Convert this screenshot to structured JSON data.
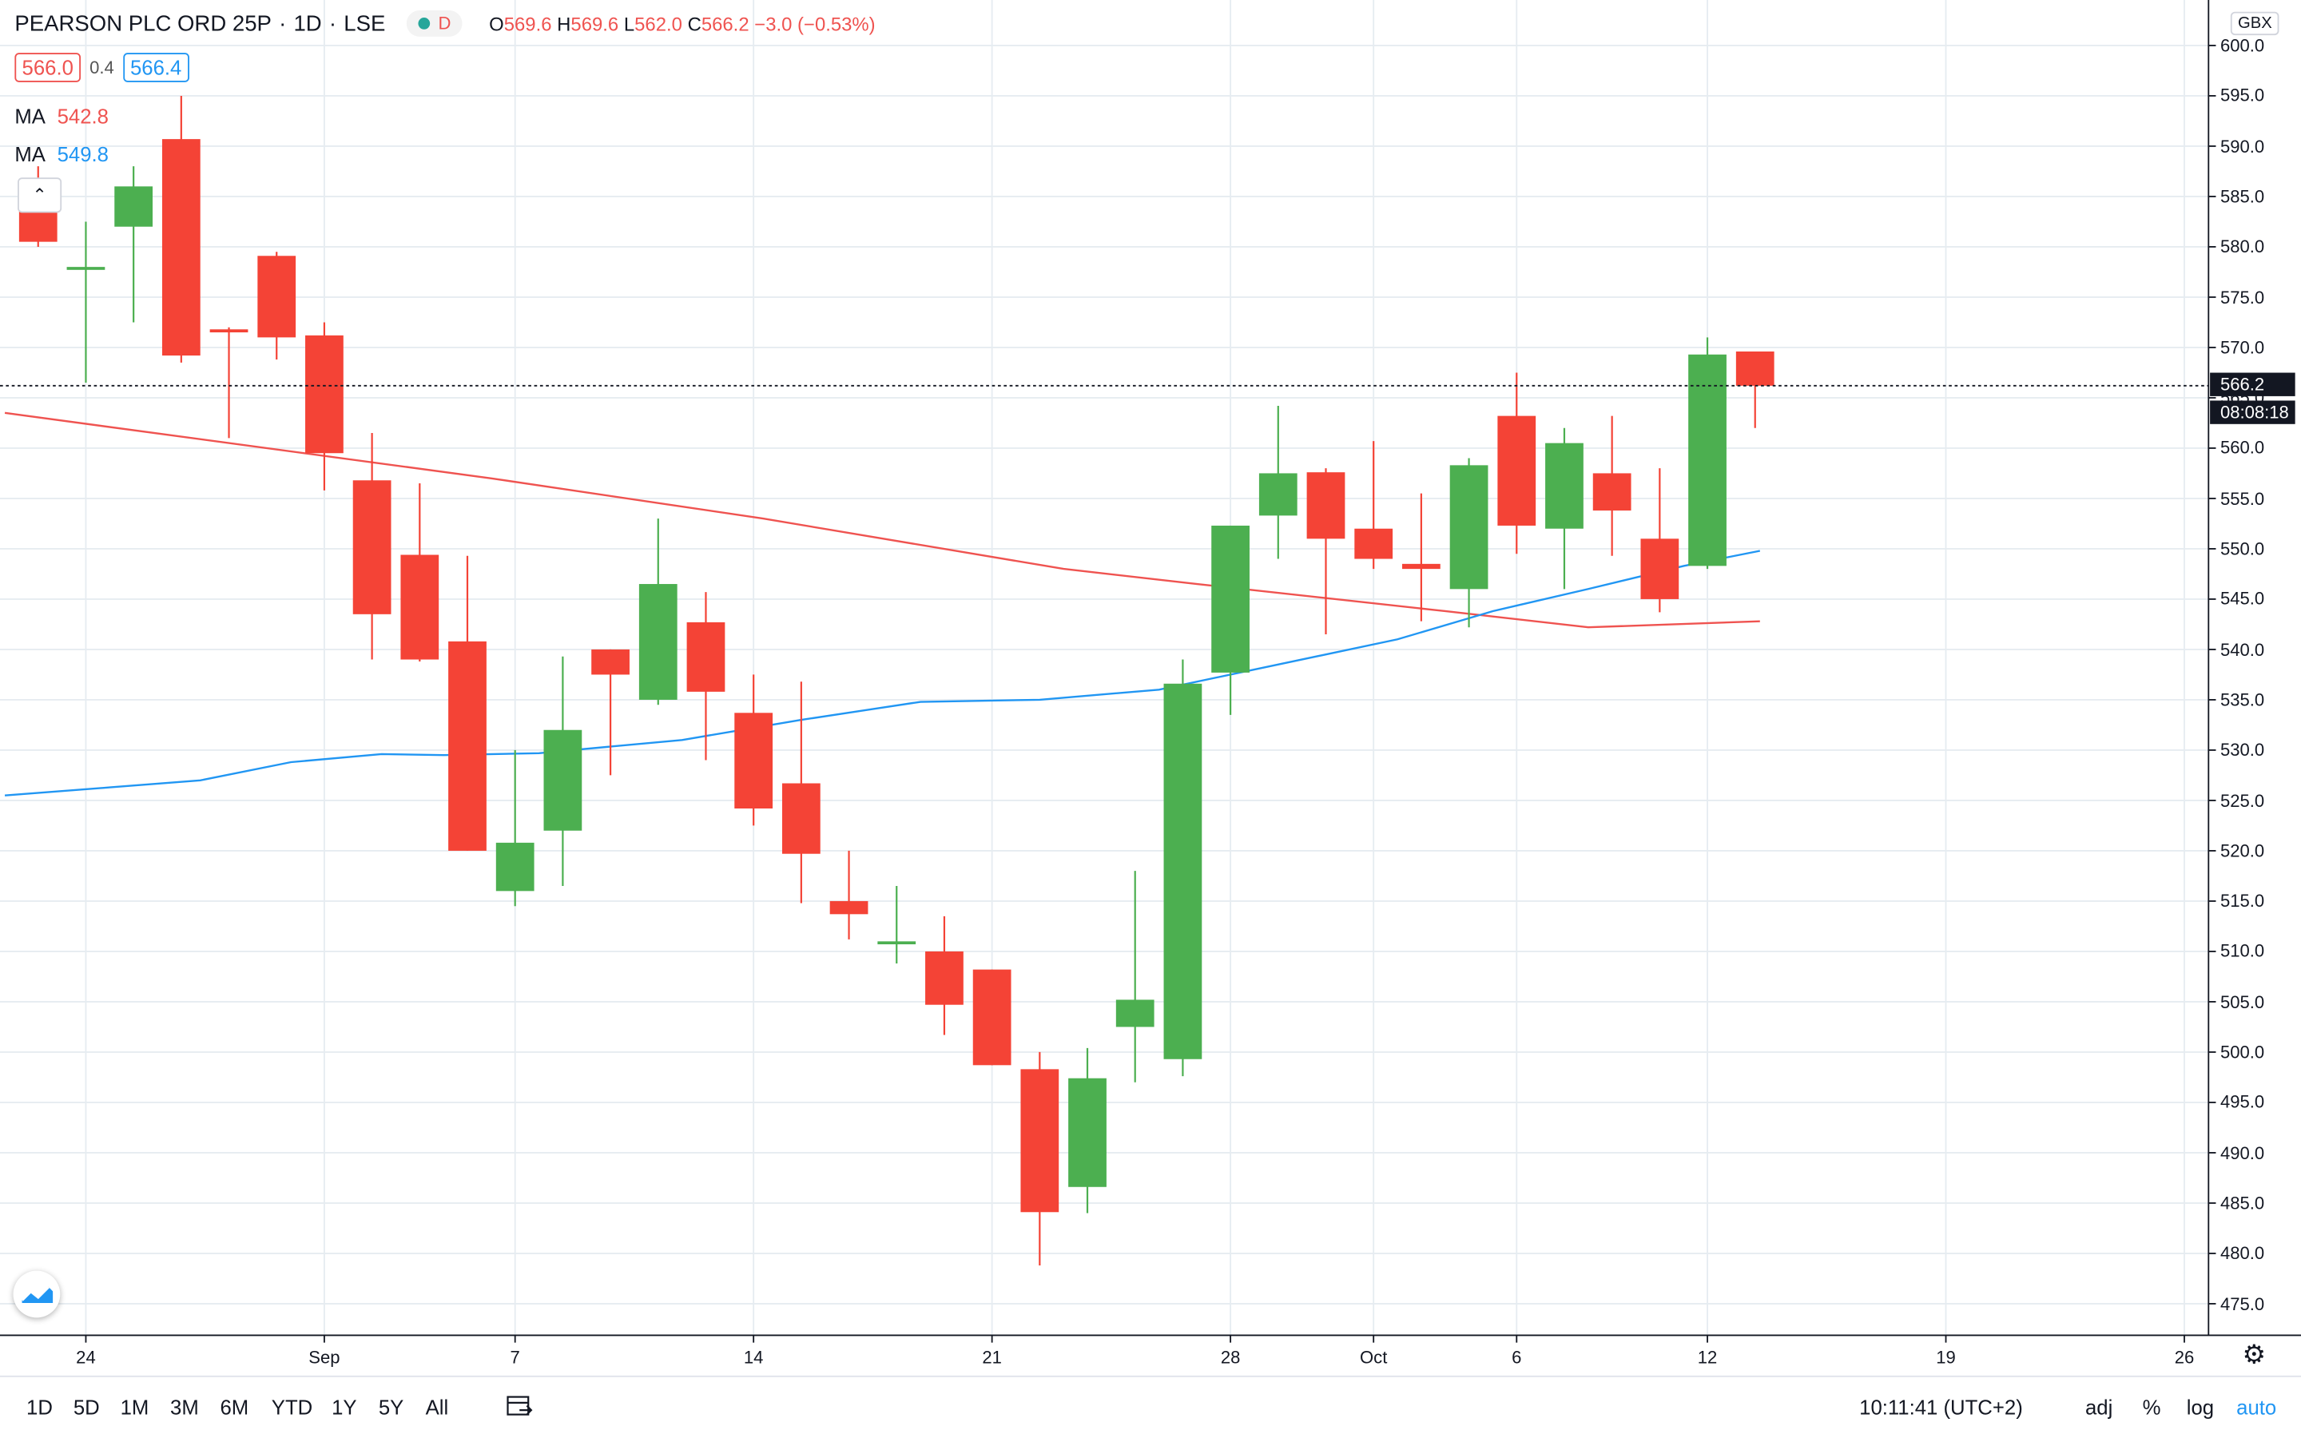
{
  "header": {
    "symbol": "PEARSON PLC ORD 25P",
    "interval": "1D",
    "exchange": "LSE",
    "badge": "D",
    "ohlc": {
      "o": "569.6",
      "h": "569.6",
      "l": "562.0",
      "c": "566.2",
      "change": "−3.0 (−0.53%)"
    },
    "bid": "566.0",
    "spread": "0.4",
    "ask": "566.4"
  },
  "indicators": [
    {
      "label": "MA",
      "value": "542.8",
      "color": "#ef5350"
    },
    {
      "label": "MA",
      "value": "549.8",
      "color": "#2196f3"
    }
  ],
  "currency": "GBX",
  "last_price": "566.2",
  "countdown": "08:08:18",
  "bottom_bar": {
    "ranges": [
      "1D",
      "5D",
      "1M",
      "3M",
      "6M",
      "YTD",
      "1Y",
      "5Y",
      "All"
    ],
    "time": "10:11:41 (UTC+2)",
    "adj": "adj",
    "percent": "%",
    "log": "log",
    "auto": "auto"
  },
  "colors": {
    "up": "#4caf50",
    "down": "#f44336",
    "ma_long": "#ef5350",
    "ma_short": "#2196f3",
    "grid": "#e6ecf1"
  },
  "chart_data": {
    "type": "candlestick",
    "ylim": [
      472,
      602
    ],
    "y_ticks": [
      475,
      480,
      485,
      490,
      495,
      500,
      505,
      510,
      515,
      520,
      525,
      530,
      535,
      540,
      545,
      550,
      555,
      560,
      565,
      570,
      575,
      580,
      585,
      590,
      595,
      600
    ],
    "x_ticks": [
      {
        "label": "24",
        "index": 1
      },
      {
        "label": "Sep",
        "index": 6
      },
      {
        "label": "7",
        "index": 10
      },
      {
        "label": "14",
        "index": 15
      },
      {
        "label": "21",
        "index": 20
      },
      {
        "label": "28",
        "index": 25
      },
      {
        "label": "Oct",
        "index": 28
      },
      {
        "label": "6",
        "index": 31
      },
      {
        "label": "12",
        "index": 35
      },
      {
        "label": "19",
        "index": 40
      },
      {
        "label": "26",
        "index": 45
      }
    ],
    "candles": [
      {
        "o": 585.0,
        "h": 588.0,
        "l": 580.0,
        "c": 580.5
      },
      {
        "o": 578.0,
        "h": 582.5,
        "l": 566.5,
        "c": 578.0
      },
      {
        "o": 582.0,
        "h": 588.0,
        "l": 572.5,
        "c": 586.0
      },
      {
        "o": 590.7,
        "h": 595.0,
        "l": 568.5,
        "c": 569.2
      },
      {
        "o": 571.8,
        "h": 572.0,
        "l": 561.0,
        "c": 571.5
      },
      {
        "o": 579.1,
        "h": 579.5,
        "l": 568.8,
        "c": 571.0
      },
      {
        "o": 571.2,
        "h": 572.5,
        "l": 555.8,
        "c": 559.5
      },
      {
        "o": 556.8,
        "h": 561.5,
        "l": 539.0,
        "c": 543.5
      },
      {
        "o": 549.4,
        "h": 556.5,
        "l": 538.8,
        "c": 539.0
      },
      {
        "o": 540.8,
        "h": 549.3,
        "l": 520.0,
        "c": 520.0
      },
      {
        "o": 516.0,
        "h": 530.0,
        "l": 514.5,
        "c": 520.8
      },
      {
        "o": 522.0,
        "h": 539.3,
        "l": 516.5,
        "c": 532.0
      },
      {
        "o": 540.0,
        "h": 540.0,
        "l": 527.5,
        "c": 537.5
      },
      {
        "o": 535.0,
        "h": 553.0,
        "l": 534.5,
        "c": 546.5
      },
      {
        "o": 542.7,
        "h": 545.7,
        "l": 529.0,
        "c": 535.8
      },
      {
        "o": 533.7,
        "h": 537.5,
        "l": 522.5,
        "c": 524.2
      },
      {
        "o": 526.7,
        "h": 536.8,
        "l": 514.8,
        "c": 519.7
      },
      {
        "o": 515.0,
        "h": 520.0,
        "l": 511.2,
        "c": 513.7
      },
      {
        "o": 511.0,
        "h": 516.5,
        "l": 508.8,
        "c": 511.0
      },
      {
        "o": 510.0,
        "h": 513.5,
        "l": 501.7,
        "c": 504.7
      },
      {
        "o": 508.2,
        "h": 508.2,
        "l": 498.7,
        "c": 498.7
      },
      {
        "o": 498.3,
        "h": 500.0,
        "l": 478.8,
        "c": 484.1
      },
      {
        "o": 486.6,
        "h": 500.4,
        "l": 484.0,
        "c": 497.4
      },
      {
        "o": 502.5,
        "h": 518.0,
        "l": 497.0,
        "c": 505.2
      },
      {
        "o": 499.3,
        "h": 539.0,
        "l": 497.6,
        "c": 536.6
      },
      {
        "o": 537.7,
        "h": 552.3,
        "l": 533.5,
        "c": 552.3
      },
      {
        "o": 553.3,
        "h": 564.2,
        "l": 549.0,
        "c": 557.5
      },
      {
        "o": 557.6,
        "h": 558.0,
        "l": 541.5,
        "c": 551.0
      },
      {
        "o": 552.0,
        "h": 560.7,
        "l": 548.0,
        "c": 549.0
      },
      {
        "o": 548.5,
        "h": 555.5,
        "l": 542.8,
        "c": 548.0
      },
      {
        "o": 546.0,
        "h": 559.0,
        "l": 542.2,
        "c": 558.3
      },
      {
        "o": 563.2,
        "h": 567.5,
        "l": 549.5,
        "c": 552.3
      },
      {
        "o": 552.0,
        "h": 562.0,
        "l": 546.0,
        "c": 560.5
      },
      {
        "o": 557.5,
        "h": 563.2,
        "l": 549.3,
        "c": 553.8
      },
      {
        "o": 551.0,
        "h": 558.0,
        "l": 543.7,
        "c": 545.0
      },
      {
        "o": 548.3,
        "h": 571.0,
        "l": 548.0,
        "c": 569.3
      },
      {
        "o": 569.6,
        "h": 569.6,
        "l": 562.0,
        "c": 566.2
      }
    ],
    "series": [
      {
        "name": "MA",
        "value_label": "542.8",
        "color": "#ef5350",
        "points": [
          [
            -0.7,
            563.5
          ],
          [
            9.5,
            557.0
          ],
          [
            15.2,
            553.0
          ],
          [
            21.5,
            548.0
          ],
          [
            24.3,
            546.5
          ],
          [
            29.5,
            543.8
          ],
          [
            32.5,
            542.2
          ],
          [
            36.1,
            542.8
          ]
        ]
      },
      {
        "name": "MA",
        "value_label": "549.8",
        "color": "#2196f3",
        "points": [
          [
            -0.7,
            525.5
          ],
          [
            1.5,
            526.3
          ],
          [
            3.4,
            527.0
          ],
          [
            5.3,
            528.8
          ],
          [
            7.2,
            529.6
          ],
          [
            8.5,
            529.5
          ],
          [
            10.5,
            529.7
          ],
          [
            13.5,
            531.0
          ],
          [
            16.0,
            533.0
          ],
          [
            18.5,
            534.8
          ],
          [
            21.0,
            535.0
          ],
          [
            23.5,
            536.0
          ],
          [
            25.5,
            538.0
          ],
          [
            28.5,
            541.0
          ],
          [
            30.5,
            543.8
          ],
          [
            32.5,
            546.0
          ],
          [
            34.5,
            548.3
          ],
          [
            36.1,
            549.8
          ]
        ]
      }
    ]
  }
}
